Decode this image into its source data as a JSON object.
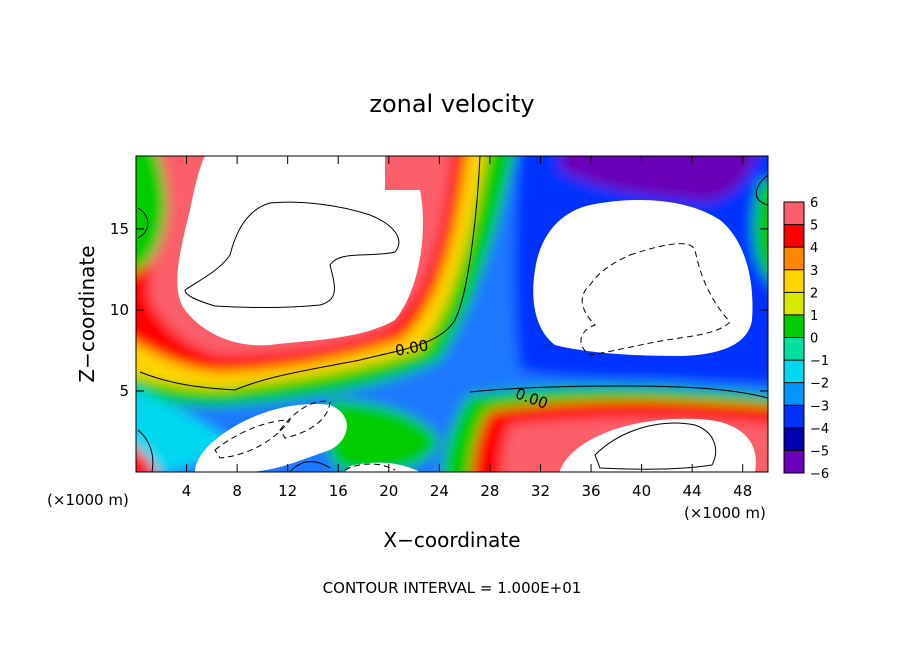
{
  "chart_data": {
    "type": "heatmap",
    "title": "zonal velocity",
    "xlabel": "X−coordinate",
    "ylabel": "Z−coordinate",
    "x_unit_label_left": "(×1000 m)",
    "x_unit_label_right": "(×1000 m)",
    "footer": "CONTOUR INTERVAL = 1.000E+01",
    "xlim": [
      0,
      50
    ],
    "ylim": [
      0,
      19.5
    ],
    "x_ticks": [
      4,
      8,
      12,
      16,
      20,
      24,
      28,
      32,
      36,
      40,
      44,
      48
    ],
    "y_ticks": [
      5,
      10,
      15
    ],
    "colorbar": {
      "range": [
        -6,
        6
      ],
      "ticks": [
        "6",
        "5",
        "4",
        "3",
        "2",
        "1",
        "0",
        "−1",
        "−2",
        "−3",
        "−4",
        "−5",
        "−6"
      ],
      "colors": [
        "#f2a0a0",
        "#fb5e6a",
        "#ff0000",
        "#ff8800",
        "#ffd500",
        "#d8e800",
        "#00cc00",
        "#00e0a0",
        "#00d8f0",
        "#0096ff",
        "#0030ff",
        "#0000b0",
        "#6a00b8"
      ]
    },
    "contour_labels": [
      "0.00",
      "0.00"
    ],
    "masked_color": "#ffffff"
  }
}
